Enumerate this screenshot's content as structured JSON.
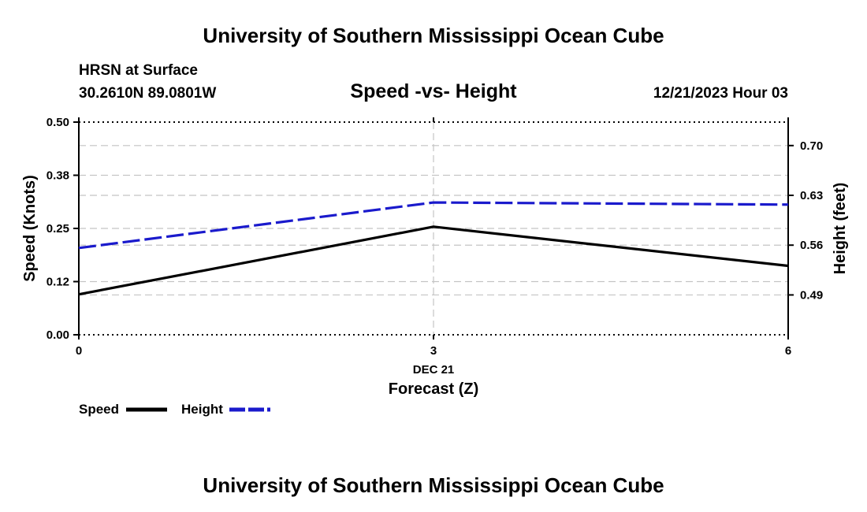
{
  "header": {
    "title": "University of Southern Mississippi Ocean Cube",
    "station": "HRSN at Surface",
    "coords": "30.2610N  89.0801W",
    "datetime": "12/21/2023 Hour 03"
  },
  "footer": {
    "title": "University of Southern Mississippi Ocean Cube"
  },
  "chart_data": {
    "type": "line",
    "title": "Speed -vs- Height",
    "xlabel": "Forecast (Z)",
    "xdate": "DEC 21",
    "ylabel_left": "Speed (Knots)",
    "ylabel_right": "Height (feet)",
    "xlim": [
      0,
      6
    ],
    "ylim_left": [
      0.0,
      0.5
    ],
    "ylim_right": [
      0.434,
      0.733
    ],
    "x_ticks": [
      "0",
      "3",
      "6"
    ],
    "left_ticks": [
      {
        "v": 0.0,
        "label": "0.00"
      },
      {
        "v": 0.125,
        "label": "0.12"
      },
      {
        "v": 0.25,
        "label": "0.25"
      },
      {
        "v": 0.375,
        "label": "0.38"
      },
      {
        "v": 0.5,
        "label": "0.50"
      }
    ],
    "right_ticks": [
      {
        "v": 0.49,
        "label": "0.49"
      },
      {
        "v": 0.56,
        "label": "0.56"
      },
      {
        "v": 0.63,
        "label": "0.63"
      },
      {
        "v": 0.7,
        "label": "0.70"
      }
    ],
    "series": [
      {
        "name": "Speed",
        "axis": "left",
        "color": "#000000",
        "dash": false,
        "x": [
          0,
          3,
          6
        ],
        "values": [
          0.095,
          0.254,
          0.162
        ]
      },
      {
        "name": "Height",
        "axis": "right",
        "color": "#1a1acc",
        "dash": true,
        "x": [
          0,
          3,
          6
        ],
        "values": [
          0.556,
          0.62,
          0.617
        ]
      }
    ]
  }
}
